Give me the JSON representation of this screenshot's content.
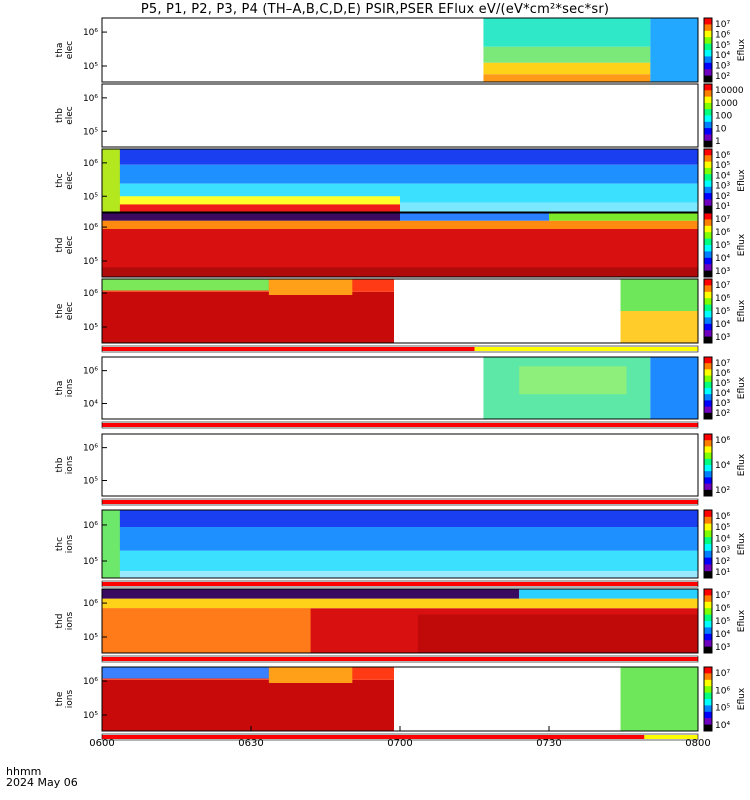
{
  "chart_data": {
    "type": "heatmap",
    "title": "P5, P1, P2, P3, P4 (TH–A,B,C,D,E) PSIR,PSER EFlux eV/(eV*cm²*sec*sr)",
    "x_tick_labels": [
      "0600",
      "0630",
      "0700",
      "0730",
      "0800"
    ],
    "x_label_line1": "hhmm",
    "x_label_line2": "2024 May 06",
    "panels": [
      {
        "ylabel": [
          "tha",
          "elec"
        ],
        "yticks": [
          "10⁶",
          "10⁵"
        ],
        "cb_ticks": [
          "10⁷",
          "10⁶",
          "10⁵",
          "10⁴",
          "10³",
          "10²"
        ],
        "cb_label": "Eflux",
        "status_bar": null,
        "blocks": [
          {
            "t0": 0.0,
            "t1": 0.64,
            "e0": 0,
            "e1": 1,
            "c": "#ffffff"
          },
          {
            "t0": 0.64,
            "t1": 0.92,
            "e0": 0.55,
            "e1": 1,
            "c": "#2ee8c8"
          },
          {
            "t0": 0.64,
            "t1": 0.92,
            "e0": 0.3,
            "e1": 0.55,
            "c": "#7be87a"
          },
          {
            "t0": 0.64,
            "t1": 0.92,
            "e0": 0.12,
            "e1": 0.3,
            "c": "#ffd21a"
          },
          {
            "t0": 0.64,
            "t1": 0.92,
            "e0": 0,
            "e1": 0.12,
            "c": "#ff9a18"
          },
          {
            "t0": 0.92,
            "t1": 1,
            "e0": 0,
            "e1": 1,
            "c": "#22a8ff"
          }
        ]
      },
      {
        "ylabel": [
          "thb",
          "elec"
        ],
        "yticks": [
          "10⁶",
          "10⁵"
        ],
        "cb_ticks": [
          "10000",
          "1000",
          "100",
          "10",
          "1"
        ],
        "cb_label": "",
        "status_bar": null,
        "blocks": [
          {
            "t0": 0.0,
            "t1": 1.0,
            "e0": 0,
            "e1": 1,
            "c": "#ffffff"
          }
        ]
      },
      {
        "ylabel": [
          "thc",
          "elec"
        ],
        "yticks": [
          "10⁶",
          "10⁵"
        ],
        "cb_ticks": [
          "10⁶",
          "10⁵",
          "10⁴",
          "10³",
          "10²",
          "10¹"
        ],
        "cb_label": "Eflux",
        "status_bar": null,
        "blocks": [
          {
            "t0": 0.0,
            "t1": 1.0,
            "e0": 0.75,
            "e1": 1,
            "c": "#1a3ff0"
          },
          {
            "t0": 0.0,
            "t1": 1.0,
            "e0": 0.45,
            "e1": 0.75,
            "c": "#1e90ff"
          },
          {
            "t0": 0.0,
            "t1": 1.0,
            "e0": 0.15,
            "e1": 0.45,
            "c": "#3ce0ff"
          },
          {
            "t0": 0.0,
            "t1": 0.5,
            "e0": 0.1,
            "e1": 0.25,
            "c": "#ffff2a"
          },
          {
            "t0": 0.0,
            "t1": 0.5,
            "e0": 0.0,
            "e1": 0.12,
            "c": "#ee1a1a"
          },
          {
            "t0": 0.5,
            "t1": 1.0,
            "e0": 0.0,
            "e1": 0.15,
            "c": "#7be8ff"
          },
          {
            "t0": 0.0,
            "t1": 0.03,
            "e0": 0,
            "e1": 1,
            "c": "#b4e81e"
          }
        ]
      },
      {
        "ylabel": [
          "thd",
          "elec"
        ],
        "yticks": [
          "10⁶",
          "10⁵"
        ],
        "cb_ticks": [
          "10⁷",
          "10⁶",
          "10⁵",
          "10⁴",
          "10³"
        ],
        "cb_label": "Eflux",
        "status_bar": null,
        "blocks": [
          {
            "t0": 0.0,
            "t1": 1.0,
            "e0": 0,
            "e1": 0.75,
            "c": "#d81010"
          },
          {
            "t0": 0.0,
            "t1": 1.0,
            "e0": 0.75,
            "e1": 0.88,
            "c": "#ff8a10"
          },
          {
            "t0": 0.0,
            "t1": 0.5,
            "e0": 0.88,
            "e1": 1,
            "c": "#3a0a60"
          },
          {
            "t0": 0.5,
            "t1": 0.75,
            "e0": 0.88,
            "e1": 1,
            "c": "#2a80ff"
          },
          {
            "t0": 0.75,
            "t1": 1.0,
            "e0": 0.88,
            "e1": 1,
            "c": "#7be82a"
          },
          {
            "t0": 0.0,
            "t1": 1.0,
            "e0": 0,
            "e1": 0.15,
            "c": "#b00a0a"
          }
        ]
      },
      {
        "ylabel": [
          "the",
          "elec"
        ],
        "yticks": [
          "10⁶",
          "10⁵"
        ],
        "cb_ticks": [
          "10⁷",
          "10⁶",
          "10⁵",
          "10⁴",
          "10³"
        ],
        "cb_label": "Eflux",
        "status_bar": [
          {
            "f0": 0.0,
            "f1": 0.625,
            "c": "#ff0000"
          },
          {
            "f0": 0.625,
            "f1": 1.0,
            "c": "#ffff00"
          }
        ],
        "blocks": [
          {
            "t0": 0.0,
            "t1": 0.49,
            "e0": 0,
            "e1": 0.8,
            "c": "#c80a0a"
          },
          {
            "t0": 0.0,
            "t1": 0.49,
            "e0": 0.8,
            "e1": 1,
            "c": "#ff3a14"
          },
          {
            "t0": 0.0,
            "t1": 0.28,
            "e0": 0.82,
            "e1": 1,
            "c": "#7be85a"
          },
          {
            "t0": 0.28,
            "t1": 0.42,
            "e0": 0.75,
            "e1": 1,
            "c": "#ffa018"
          },
          {
            "t0": 0.49,
            "t1": 0.87,
            "e0": 0,
            "e1": 1,
            "c": "#ffffff"
          },
          {
            "t0": 0.87,
            "t1": 1.0,
            "e0": 0.5,
            "e1": 1,
            "c": "#6ee85a"
          },
          {
            "t0": 0.87,
            "t1": 1.0,
            "e0": 0,
            "e1": 0.5,
            "c": "#ffcc2a"
          }
        ]
      },
      {
        "ylabel": [
          "tha",
          "ions"
        ],
        "yticks": [
          "10⁶",
          "10⁴"
        ],
        "cb_ticks": [
          "10⁷",
          "10⁶",
          "10⁵",
          "10⁴",
          "10³",
          "10²"
        ],
        "cb_label": "Eflux",
        "status_bar": [
          {
            "f0": 0.0,
            "f1": 1.0,
            "c": "#ff0000"
          }
        ],
        "blocks": [
          {
            "t0": 0.0,
            "t1": 0.64,
            "e0": 0,
            "e1": 1,
            "c": "#ffffff"
          },
          {
            "t0": 0.64,
            "t1": 0.92,
            "e0": 0.0,
            "e1": 1,
            "c": "#5ee8a8"
          },
          {
            "t0": 0.7,
            "t1": 0.88,
            "e0": 0.4,
            "e1": 0.85,
            "c": "#8ef07a"
          },
          {
            "t0": 0.92,
            "t1": 1.0,
            "e0": 0,
            "e1": 1,
            "c": "#1e8aff"
          }
        ]
      },
      {
        "ylabel": [
          "thb",
          "ions"
        ],
        "yticks": [
          "10⁶",
          "10⁵"
        ],
        "cb_ticks": [
          "10⁶",
          "10⁴",
          "10²"
        ],
        "cb_label": "Eflux",
        "status_bar": [
          {
            "f0": 0.0,
            "f1": 1.0,
            "c": "#ff0000"
          }
        ],
        "blocks": [
          {
            "t0": 0.0,
            "t1": 1.0,
            "e0": 0,
            "e1": 1,
            "c": "#ffffff"
          }
        ]
      },
      {
        "ylabel": [
          "thc",
          "ions"
        ],
        "yticks": [
          "10⁶",
          "10⁵"
        ],
        "cb_ticks": [
          "10⁶",
          "10⁵",
          "10⁴",
          "10³",
          "10²",
          "10¹"
        ],
        "cb_label": "Eflux",
        "status_bar": [
          {
            "f0": 0.0,
            "f1": 1.0,
            "c": "#ff0000"
          }
        ],
        "blocks": [
          {
            "t0": 0.0,
            "t1": 1.0,
            "e0": 0.75,
            "e1": 1,
            "c": "#1a3ff0"
          },
          {
            "t0": 0.0,
            "t1": 1.0,
            "e0": 0.4,
            "e1": 0.75,
            "c": "#1e90ff"
          },
          {
            "t0": 0.0,
            "t1": 1.0,
            "e0": 0.1,
            "e1": 0.4,
            "c": "#3ce0ff"
          },
          {
            "t0": 0.0,
            "t1": 1.0,
            "e0": 0.0,
            "e1": 0.1,
            "c": "#9ae8ff"
          },
          {
            "t0": 0.0,
            "t1": 0.03,
            "e0": 0,
            "e1": 1,
            "c": "#6ee86a"
          }
        ]
      },
      {
        "ylabel": [
          "thd",
          "ions"
        ],
        "yticks": [
          "10⁶",
          "10⁵"
        ],
        "cb_ticks": [
          "10⁷",
          "10⁶",
          "10⁵",
          "10⁴",
          "10³"
        ],
        "cb_label": "Eflux",
        "status_bar": [
          {
            "f0": 0.0,
            "f1": 1.0,
            "c": "#ff0000"
          }
        ],
        "blocks": [
          {
            "t0": 0.0,
            "t1": 1.0,
            "e0": 0,
            "e1": 0.7,
            "c": "#d81010"
          },
          {
            "t0": 0.0,
            "t1": 0.35,
            "e0": 0,
            "e1": 0.7,
            "c": "#ff7a18"
          },
          {
            "t0": 0.0,
            "t1": 1.0,
            "e0": 0.7,
            "e1": 0.85,
            "c": "#ffd21a"
          },
          {
            "t0": 0.0,
            "t1": 0.7,
            "e0": 0.85,
            "e1": 1,
            "c": "#3a0a60"
          },
          {
            "t0": 0.7,
            "t1": 1.0,
            "e0": 0.85,
            "e1": 1,
            "c": "#2ad0ff"
          },
          {
            "t0": 0.53,
            "t1": 1.0,
            "e0": 0,
            "e1": 0.6,
            "c": "#c00a0a"
          }
        ]
      },
      {
        "ylabel": [
          "the",
          "ions"
        ],
        "yticks": [
          "10⁶",
          "10⁵"
        ],
        "cb_ticks": [
          "10⁷",
          "10⁶",
          "10⁵",
          "10⁴"
        ],
        "cb_label": "Eflux",
        "status_bar": [
          {
            "f0": 0.0,
            "f1": 0.91,
            "c": "#ff0000"
          },
          {
            "f0": 0.91,
            "f1": 1.0,
            "c": "#ffff00"
          }
        ],
        "blocks": [
          {
            "t0": 0.0,
            "t1": 0.49,
            "e0": 0,
            "e1": 0.8,
            "c": "#c80a0a"
          },
          {
            "t0": 0.0,
            "t1": 0.49,
            "e0": 0.8,
            "e1": 1,
            "c": "#ff3a14"
          },
          {
            "t0": 0.0,
            "t1": 0.28,
            "e0": 0.82,
            "e1": 1,
            "c": "#3a80ff"
          },
          {
            "t0": 0.28,
            "t1": 0.42,
            "e0": 0.75,
            "e1": 1,
            "c": "#ffa018"
          },
          {
            "t0": 0.49,
            "t1": 0.87,
            "e0": 0,
            "e1": 1,
            "c": "#ffffff"
          },
          {
            "t0": 0.87,
            "t1": 1.0,
            "e0": 0,
            "e1": 1,
            "c": "#6ee85a"
          }
        ]
      }
    ]
  }
}
